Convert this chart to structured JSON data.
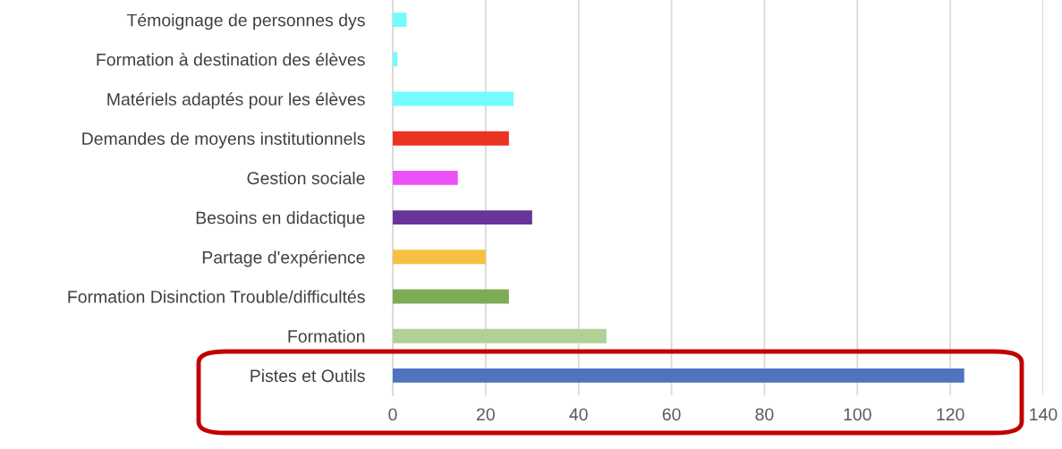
{
  "chart_data": {
    "type": "bar",
    "orientation": "horizontal",
    "categories": [
      "Témoignage de personnes dys",
      "Formation à destination des élèves",
      "Matériels adaptés pour les élèves",
      "Demandes de moyens institutionnels",
      "Gestion sociale",
      "Besoins en didactique",
      "Partage d'expérience",
      "Formation Disinction Trouble/difficultés",
      "Formation",
      "Pistes et Outils"
    ],
    "values": [
      3,
      1,
      26,
      25,
      14,
      30,
      20,
      25,
      46,
      123
    ],
    "colors": [
      "#75fbfd",
      "#75fbfd",
      "#75fbfd",
      "#ea3323",
      "#ea52f7",
      "#68349a",
      "#f6c143",
      "#7eab55",
      "#b0d095",
      "#4f73be"
    ],
    "xlim": [
      0,
      140
    ],
    "xticks": [
      0,
      20,
      40,
      60,
      80,
      100,
      120,
      140
    ],
    "grid": "x"
  }
}
